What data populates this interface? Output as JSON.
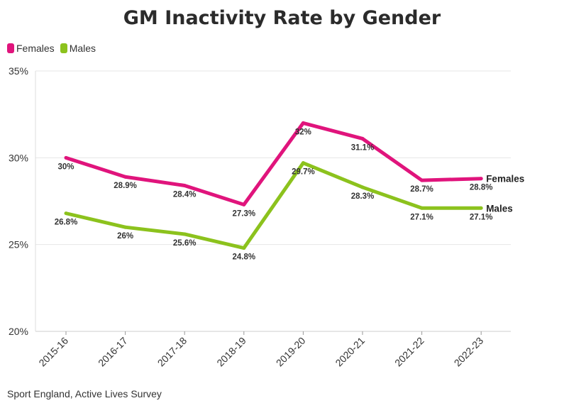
{
  "chart_data": {
    "type": "line",
    "title": "GM Inactivity Rate by Gender",
    "categories": [
      "2015-16",
      "2016-17",
      "2017-18",
      "2018-19",
      "2019-20",
      "2020-21",
      "2021-22",
      "2022-23"
    ],
    "series": [
      {
        "name": "Females",
        "color": "#e0147c",
        "values": [
          30,
          28.9,
          28.4,
          27.3,
          32,
          31.1,
          28.7,
          28.8
        ],
        "labels": [
          "30%",
          "28.9%",
          "28.4%",
          "27.3%",
          "32%",
          "31.1%",
          "28.7%",
          "28.8%"
        ],
        "end_label": "Females"
      },
      {
        "name": "Males",
        "color": "#8cc21d",
        "values": [
          26.8,
          26,
          25.6,
          24.8,
          29.7,
          28.3,
          27.1,
          27.1
        ],
        "labels": [
          "26.8%",
          "26%",
          "25.6%",
          "24.8%",
          "29.7%",
          "28.3%",
          "27.1%",
          "27.1%"
        ],
        "end_label": "Males"
      }
    ],
    "ylim": [
      20,
      35
    ],
    "yticks": [
      20,
      25,
      30,
      35
    ],
    "ytick_labels": [
      "20%",
      "25%",
      "30%",
      "35%"
    ],
    "xlabel": "",
    "ylabel": "",
    "grid": true,
    "legend": "top-left"
  },
  "source": "Sport England, Active Lives Survey"
}
